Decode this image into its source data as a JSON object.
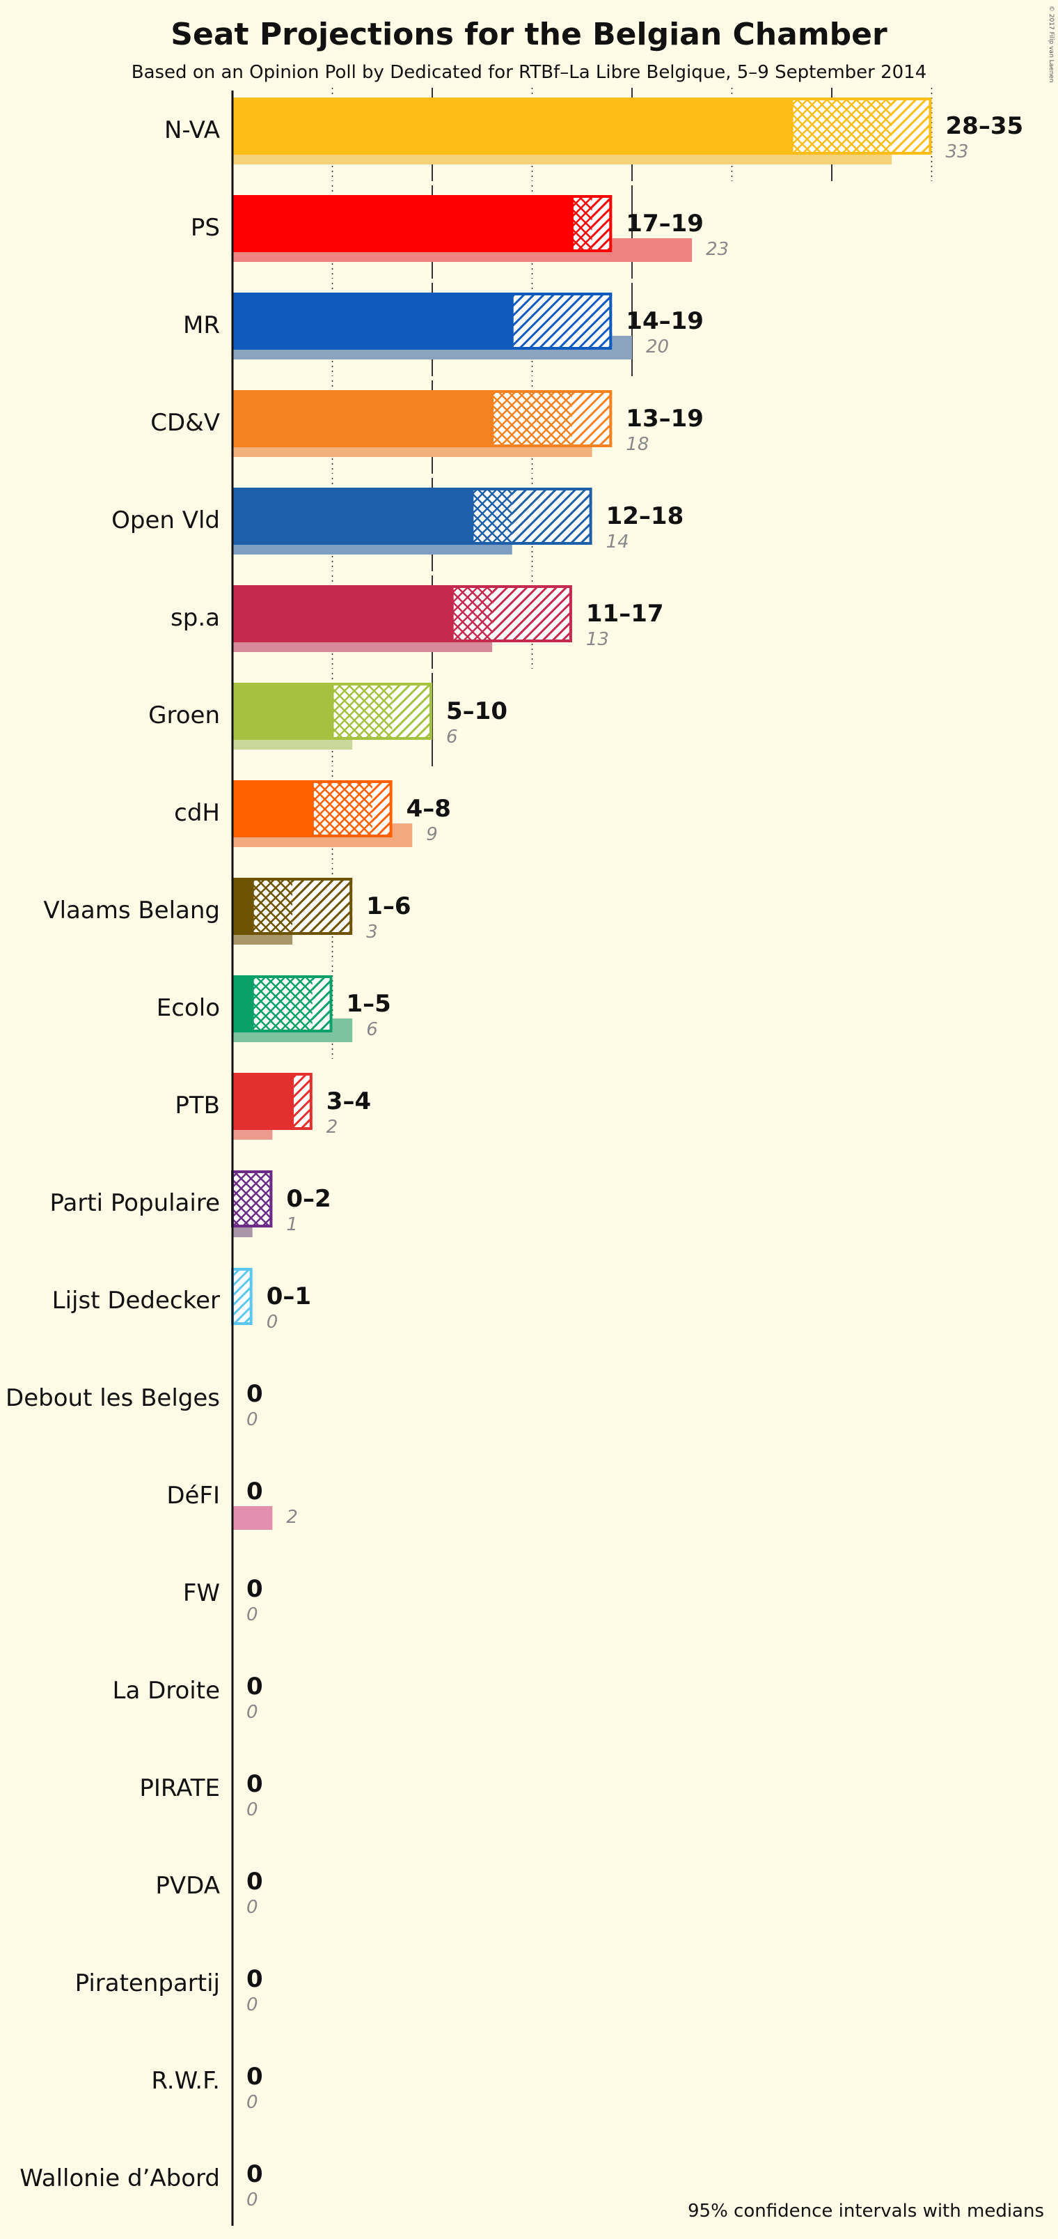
{
  "title": "Seat Projections for the Belgian Chamber",
  "subtitle": "Based on an Opinion Poll by Dedicated for RTBf–La Libre Belgique, 5–9 September 2014",
  "footnote": "95% confidence intervals with medians",
  "copyright": "© 2017 Filip van Laenen",
  "chart_data": {
    "type": "bar",
    "orientation": "horizontal",
    "title": "Seat Projections for the Belgian Chamber",
    "subtitle": "Based on an Opinion Poll by Dedicated for RTBf–La Libre Belgique, 5–9 September 2014",
    "xlim": [
      0,
      36
    ],
    "grid": "vertical gridlines every 5 seats (dotted), solid lines every 10",
    "series": [
      {
        "name": "95% confidence intervals with medians"
      }
    ],
    "parties": [
      {
        "name": "N-VA",
        "color": "#fbbd16",
        "low": 28,
        "q1": 28,
        "median": 30,
        "q3": 33,
        "high": 35,
        "range_label": "28–35",
        "last": 33,
        "last_label": "33",
        "last_color": "#f3d27a"
      },
      {
        "name": "PS",
        "color": "#ff0000",
        "low": 17,
        "q1": 17,
        "median": 17,
        "q3": 18,
        "high": 19,
        "range_label": "17–19",
        "last": 23,
        "last_label": "23",
        "last_color": "#ee8480"
      },
      {
        "name": "MR",
        "color": "#0f5bbd",
        "low": 14,
        "q1": 14,
        "median": 14,
        "q3": 14,
        "high": 19,
        "range_label": "14–19",
        "last": 20,
        "last_label": "20",
        "last_color": "#8ba3bf"
      },
      {
        "name": "CD&V",
        "color": "#f58220",
        "low": 13,
        "q1": 13,
        "median": 13,
        "q3": 17,
        "high": 19,
        "range_label": "13–19",
        "last": 18,
        "last_label": "18",
        "last_color": "#f2b07a"
      },
      {
        "name": "Open Vld",
        "color": "#1d5fa8",
        "low": 12,
        "q1": 12,
        "median": 12,
        "q3": 14,
        "high": 18,
        "range_label": "12–18",
        "last": 14,
        "last_label": "14",
        "last_color": "#7f9fc2"
      },
      {
        "name": "sp.a",
        "color": "#c52a4e",
        "low": 11,
        "q1": 11,
        "median": 11,
        "q3": 13,
        "high": 17,
        "range_label": "11–17",
        "last": 13,
        "last_label": "13",
        "last_color": "#d78a99"
      },
      {
        "name": "Groen",
        "color": "#a4c140",
        "low": 5,
        "q1": 5,
        "median": 5,
        "q3": 8,
        "high": 10,
        "range_label": "5–10",
        "last": 6,
        "last_label": "6",
        "last_color": "#c9d79a"
      },
      {
        "name": "cdH",
        "color": "#ff6000",
        "low": 4,
        "q1": 4,
        "median": 4,
        "q3": 7,
        "high": 8,
        "range_label": "4–8",
        "last": 9,
        "last_label": "9",
        "last_color": "#f3a97d"
      },
      {
        "name": "Vlaams Belang",
        "color": "#6e5400",
        "low": 1,
        "q1": 1,
        "median": 1,
        "q3": 3,
        "high": 6,
        "range_label": "1–6",
        "last": 3,
        "last_label": "3",
        "last_color": "#a9976a"
      },
      {
        "name": "Ecolo",
        "color": "#0aa169",
        "low": 1,
        "q1": 1,
        "median": 1,
        "q3": 4,
        "high": 5,
        "range_label": "1–5",
        "last": 6,
        "last_label": "6",
        "last_color": "#7dc3a0"
      },
      {
        "name": "PTB",
        "color": "#e42f2f",
        "low": 3,
        "q1": 3,
        "median": 3,
        "q3": 3,
        "high": 4,
        "range_label": "3–4",
        "last": 2,
        "last_label": "2",
        "last_color": "#ec9a8e"
      },
      {
        "name": "Parti Populaire",
        "color": "#6c2b86",
        "low": 0,
        "q1": 0,
        "median": 0,
        "q3": 2,
        "high": 2,
        "range_label": "0–2",
        "last": 1,
        "last_label": "1",
        "last_color": "#a996a8"
      },
      {
        "name": "Lijst Dedecker",
        "color": "#5ac8ef",
        "low": 0,
        "q1": 0,
        "median": 0,
        "q3": 0,
        "high": 1,
        "range_label": "0–1",
        "last": 0,
        "last_label": "0",
        "last_color": "#bfe3ef"
      },
      {
        "name": "Debout les Belges",
        "color": "#f0a64a",
        "low": 0,
        "q1": 0,
        "median": 0,
        "q3": 0,
        "high": 0,
        "range_label": "0",
        "last": 0,
        "last_label": "0",
        "last_color": "#f0c990"
      },
      {
        "name": "DéFI",
        "color": "#d4457a",
        "low": 0,
        "q1": 0,
        "median": 0,
        "q3": 0,
        "high": 0,
        "range_label": "0",
        "last": 2,
        "last_label": "2",
        "last_color": "#e28fae"
      },
      {
        "name": "FW",
        "color": "#888888",
        "low": 0,
        "q1": 0,
        "median": 0,
        "q3": 0,
        "high": 0,
        "range_label": "0",
        "last": 0,
        "last_label": "0",
        "last_color": "#bbbbbb"
      },
      {
        "name": "La Droite",
        "color": "#2b4c9b",
        "low": 0,
        "q1": 0,
        "median": 0,
        "q3": 0,
        "high": 0,
        "range_label": "0",
        "last": 0,
        "last_label": "0",
        "last_color": "#8fa0c8"
      },
      {
        "name": "PIRATE",
        "color": "#333333",
        "low": 0,
        "q1": 0,
        "median": 0,
        "q3": 0,
        "high": 0,
        "range_label": "0",
        "last": 0,
        "last_label": "0",
        "last_color": "#999999"
      },
      {
        "name": "PVDA",
        "color": "#c00000",
        "low": 0,
        "q1": 0,
        "median": 0,
        "q3": 0,
        "high": 0,
        "range_label": "0",
        "last": 0,
        "last_label": "0",
        "last_color": "#e08080"
      },
      {
        "name": "Piratenpartij",
        "color": "#444444",
        "low": 0,
        "q1": 0,
        "median": 0,
        "q3": 0,
        "high": 0,
        "range_label": "0",
        "last": 0,
        "last_label": "0",
        "last_color": "#aaaaaa"
      },
      {
        "name": "R.W.F.",
        "color": "#f5d000",
        "low": 0,
        "q1": 0,
        "median": 0,
        "q3": 0,
        "high": 0,
        "range_label": "0",
        "last": 0,
        "last_label": "0",
        "last_color": "#f5e680"
      },
      {
        "name": "Wallonie d’Abord",
        "color": "#e5b000",
        "low": 0,
        "q1": 0,
        "median": 0,
        "q3": 0,
        "high": 0,
        "range_label": "0",
        "last": 0,
        "last_label": "0",
        "last_color": "#f0d880"
      }
    ]
  }
}
